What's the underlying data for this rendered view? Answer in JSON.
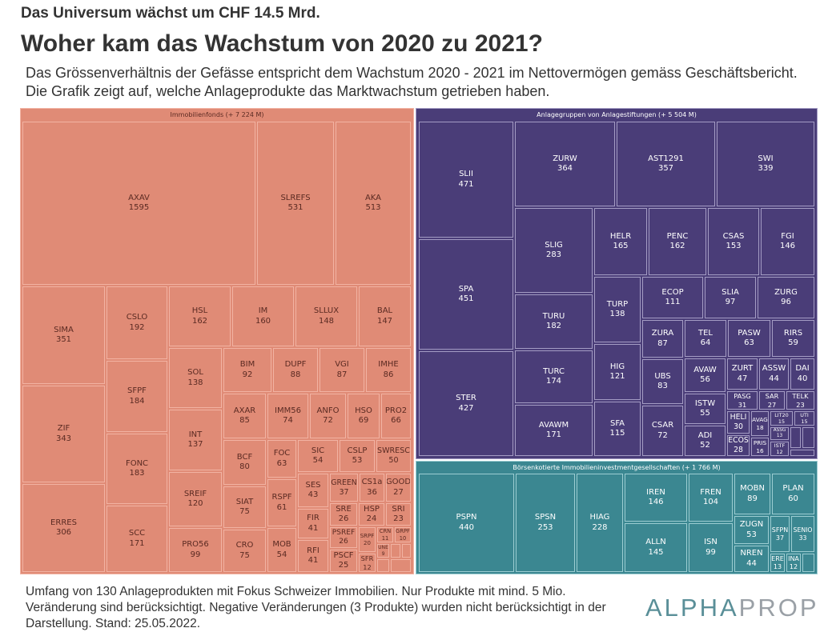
{
  "header": {
    "supertitle": "Das Universum wächst um CHF 14.5 Mrd.",
    "title": "Woher kam das Wachstum von 2020 zu 2021?",
    "subtitle": "Das Grössenverhältnis der Gefässe entspricht dem Wachstum 2020 - 2021 im Nettovermögen gemäss Geschäftsbericht. Die Grafik zeigt auf, welche Anlageprodukte das Marktwachstum getrieben haben."
  },
  "footer": {
    "note": "Umfang von 130 Anlageprodukten mit Fokus Schweizer Immobilien. Nur Produkte mit mind. 5 Mio. Veränderung sind berücksichtigt. Negative Veränderungen (3 Produkte) wurden nicht berücksichtigt in der Darstellung. Stand: 25.05.2022.",
    "logo_a": "ALPHA",
    "logo_b": "PROP"
  },
  "chart_data": {
    "type": "treemap",
    "unit": "CHF Mio.",
    "groups": [
      {
        "label": "Immobilienfonds (+ 7 224 M)",
        "color": "#e08b76",
        "border": "#f2b3a3",
        "text": "#5a2a22",
        "items": [
          [
            "AXAV",
            1595
          ],
          [
            "SLREFS",
            531
          ],
          [
            "AKA",
            513
          ],
          [
            "SIMA",
            351
          ],
          [
            "ZIF",
            343
          ],
          [
            "ERRES",
            306
          ],
          [
            "CSLO",
            192
          ],
          [
            "SFPF",
            184
          ],
          [
            "FONC",
            183
          ],
          [
            "SCC",
            171
          ],
          [
            "HSL",
            162
          ],
          [
            "IM",
            160
          ],
          [
            "SLLUX",
            148
          ],
          [
            "BAL",
            147
          ],
          [
            "SOL",
            138
          ],
          [
            "INT",
            137
          ],
          [
            "SREIF",
            120
          ],
          [
            "PRO56",
            99
          ],
          [
            "BIM",
            92
          ],
          [
            "DUPF",
            88
          ],
          [
            "VGI",
            87
          ],
          [
            "IMHE",
            86
          ],
          [
            "AXAR",
            85
          ],
          [
            "IMM56",
            74
          ],
          [
            "ANFO",
            72
          ],
          [
            "HSO",
            69
          ],
          [
            "PRO2",
            66
          ],
          [
            "BCF",
            80
          ],
          [
            "SIAT",
            75
          ],
          [
            "CRO",
            75
          ],
          [
            "FOC",
            63
          ],
          [
            "RSPF",
            61
          ],
          [
            "MOB",
            54
          ],
          [
            "SIC",
            54
          ],
          [
            "CSLP",
            53
          ],
          [
            "SWRESC",
            50
          ],
          [
            "SES",
            43
          ],
          [
            "FIR",
            41
          ],
          [
            "RFI",
            41
          ],
          [
            "GREEN",
            37
          ],
          [
            "CS1a",
            36
          ],
          [
            "GOOD",
            27
          ],
          [
            "SRE",
            26
          ],
          [
            "HSP",
            24
          ],
          [
            "SRI",
            23
          ],
          [
            "PSREF",
            26
          ],
          [
            "PSCF",
            25
          ],
          [
            "SRPF",
            20
          ],
          [
            "SFR",
            12
          ],
          [
            "CRN",
            11
          ],
          [
            "GRPF",
            10
          ],
          [
            "UNE",
            9
          ],
          [
            "",
            ""
          ],
          [
            "",
            ""
          ],
          [
            "",
            ""
          ],
          [
            "",
            ""
          ]
        ]
      },
      {
        "label": "Anlagegruppen von Anlagestiftungen (+ 5 504 M)",
        "color": "#4a3d78",
        "border": "#a49cc4",
        "text": "#ffffff",
        "items": [
          [
            "SLII",
            471
          ],
          [
            "SPA",
            451
          ],
          [
            "STER",
            427
          ],
          [
            "ZURW",
            364
          ],
          [
            "AST1291",
            357
          ],
          [
            "SWI",
            339
          ],
          [
            "SLIG",
            283
          ],
          [
            "TURU",
            182
          ],
          [
            "TURC",
            174
          ],
          [
            "AVAWM",
            171
          ],
          [
            "HELR",
            165
          ],
          [
            "PENC",
            162
          ],
          [
            "CSAS",
            153
          ],
          [
            "FGI",
            146
          ],
          [
            "TURP",
            138
          ],
          [
            "HIG",
            121
          ],
          [
            "SFA",
            115
          ],
          [
            "ECOP",
            111
          ],
          [
            "SLIA",
            97
          ],
          [
            "ZURG",
            96
          ],
          [
            "ZURA",
            87
          ],
          [
            "TEL",
            64
          ],
          [
            "PASW",
            63
          ],
          [
            "RIRS",
            59
          ],
          [
            "UBS",
            83
          ],
          [
            "CSAR",
            72
          ],
          [
            "AVAW",
            56
          ],
          [
            "ISTW",
            55
          ],
          [
            "ADI",
            52
          ],
          [
            "ZURT",
            47
          ],
          [
            "ASSW",
            44
          ],
          [
            "DAI",
            40
          ],
          [
            "PASG",
            31
          ],
          [
            "SAR",
            27
          ],
          [
            "TELK",
            23
          ],
          [
            "HELI",
            30
          ],
          [
            "ECOS",
            28
          ],
          [
            "AVAG",
            18
          ],
          [
            "PRIS",
            16
          ],
          [
            "LIT20",
            15
          ],
          [
            "UTI",
            15
          ],
          [
            "ASSG",
            13
          ],
          [
            "ISTF",
            12
          ],
          [
            "",
            ""
          ],
          [
            "",
            ""
          ],
          [
            "",
            ""
          ]
        ]
      },
      {
        "label": "Börsenkotierte Immobilieninvestmentgesellschaften (+ 1 766 M)",
        "color": "#3b8791",
        "border": "#9ccdd2",
        "text": "#ffffff",
        "items": [
          [
            "PSPN",
            440
          ],
          [
            "SPSN",
            253
          ],
          [
            "HIAG",
            228
          ],
          [
            "IREN",
            146
          ],
          [
            "ALLN",
            145
          ],
          [
            "FREN",
            104
          ],
          [
            "ISN",
            99
          ],
          [
            "MOBN",
            89
          ],
          [
            "PLAN",
            60
          ],
          [
            "ZUGN",
            53
          ],
          [
            "NREN",
            44
          ],
          [
            "SFPN",
            37
          ],
          [
            "SENIO",
            33
          ],
          [
            "ERE",
            13
          ],
          [
            "INA",
            12
          ],
          [
            "",
            ""
          ]
        ]
      }
    ]
  }
}
